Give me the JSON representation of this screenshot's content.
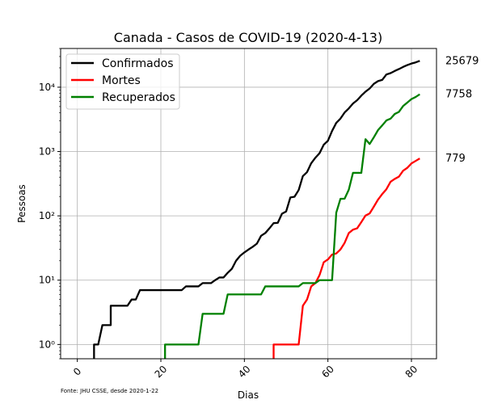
{
  "chart_data": {
    "type": "line",
    "title": "Canada - Casos de COVID-19 (2020-4-13)",
    "xlabel": "Dias",
    "ylabel": "Pessoas",
    "source_note": "Fonte: JHU CSSE, desde 2020-1-22",
    "x_scale": "linear",
    "y_scale": "log",
    "xlim": [
      -4,
      86
    ],
    "ylim": [
      0.6,
      40000
    ],
    "x_ticks": [
      0,
      20,
      40,
      60,
      80
    ],
    "x_tick_labels": [
      "0",
      "20",
      "40",
      "60",
      "80"
    ],
    "y_ticks": [
      1,
      10,
      100,
      1000,
      10000
    ],
    "y_tick_labels": [
      "10⁰",
      "10¹",
      "10²",
      "10³",
      "10⁴"
    ],
    "grid": true,
    "legend_position": "upper-left",
    "series": [
      {
        "name": "Confirmados",
        "color": "#000000",
        "end_label": "25679",
        "points": [
          [
            4,
            0.6
          ],
          [
            4,
            1
          ],
          [
            5,
            1
          ],
          [
            5,
            1
          ],
          [
            6,
            2
          ],
          [
            8,
            2
          ],
          [
            8,
            4
          ],
          [
            12,
            4
          ],
          [
            13,
            5
          ],
          [
            14,
            5
          ],
          [
            15,
            7
          ],
          [
            20,
            7
          ],
          [
            25,
            7
          ],
          [
            26,
            8
          ],
          [
            29,
            8
          ],
          [
            30,
            9
          ],
          [
            32,
            9
          ],
          [
            33,
            10
          ],
          [
            34,
            11
          ],
          [
            35,
            11
          ],
          [
            36,
            13
          ],
          [
            37,
            15
          ],
          [
            38,
            20
          ],
          [
            39,
            24
          ],
          [
            40,
            27
          ],
          [
            41,
            30
          ],
          [
            42,
            33
          ],
          [
            43,
            37
          ],
          [
            44,
            49
          ],
          [
            45,
            54
          ],
          [
            46,
            64
          ],
          [
            47,
            77
          ],
          [
            48,
            78
          ],
          [
            49,
            108
          ],
          [
            50,
            117
          ],
          [
            51,
            193
          ],
          [
            52,
            198
          ],
          [
            53,
            252
          ],
          [
            54,
            415
          ],
          [
            55,
            478
          ],
          [
            56,
            657
          ],
          [
            57,
            800
          ],
          [
            58,
            943
          ],
          [
            59,
            1277
          ],
          [
            60,
            1469
          ],
          [
            61,
            2088
          ],
          [
            62,
            2790
          ],
          [
            63,
            3251
          ],
          [
            64,
            4042
          ],
          [
            65,
            4682
          ],
          [
            66,
            5576
          ],
          [
            67,
            6280
          ],
          [
            68,
            7398
          ],
          [
            69,
            8527
          ],
          [
            70,
            9560
          ],
          [
            71,
            11284
          ],
          [
            72,
            12437
          ],
          [
            73,
            12978
          ],
          [
            74,
            15756
          ],
          [
            75,
            16563
          ],
          [
            76,
            17872
          ],
          [
            77,
            19141
          ],
          [
            78,
            20654
          ],
          [
            79,
            22059
          ],
          [
            80,
            23316
          ],
          [
            81,
            24298
          ],
          [
            82,
            25679
          ]
        ]
      },
      {
        "name": "Mortes",
        "color": "#ff0000",
        "end_label": "779",
        "points": [
          [
            47,
            0.6
          ],
          [
            47,
            1
          ],
          [
            53,
            1
          ],
          [
            54,
            4
          ],
          [
            55,
            5
          ],
          [
            56,
            8
          ],
          [
            57,
            9
          ],
          [
            58,
            12
          ],
          [
            59,
            19
          ],
          [
            60,
            21
          ],
          [
            61,
            25
          ],
          [
            62,
            26
          ],
          [
            63,
            30
          ],
          [
            64,
            38
          ],
          [
            65,
            54
          ],
          [
            66,
            61
          ],
          [
            67,
            64
          ],
          [
            68,
            80
          ],
          [
            69,
            101
          ],
          [
            70,
            109
          ],
          [
            71,
            139
          ],
          [
            72,
            179
          ],
          [
            73,
            218
          ],
          [
            74,
            259
          ],
          [
            75,
            339
          ],
          [
            76,
            375
          ],
          [
            77,
            407
          ],
          [
            78,
            503
          ],
          [
            79,
            557
          ],
          [
            80,
            653
          ],
          [
            81,
            714
          ],
          [
            82,
            779
          ]
        ]
      },
      {
        "name": "Recuperados",
        "color": "#008000",
        "end_label": "7758",
        "points": [
          [
            21,
            0.6
          ],
          [
            21,
            1
          ],
          [
            29,
            1
          ],
          [
            30,
            3
          ],
          [
            35,
            3
          ],
          [
            36,
            6
          ],
          [
            44,
            6
          ],
          [
            45,
            8
          ],
          [
            53,
            8
          ],
          [
            54,
            9
          ],
          [
            57,
            9
          ],
          [
            58,
            10
          ],
          [
            61,
            10
          ],
          [
            62,
            112
          ],
          [
            63,
            184
          ],
          [
            64,
            185
          ],
          [
            65,
            255
          ],
          [
            66,
            466
          ],
          [
            68,
            466
          ],
          [
            69,
            1555
          ],
          [
            70,
            1310
          ],
          [
            71,
            1665
          ],
          [
            72,
            2155
          ],
          [
            73,
            2548
          ],
          [
            74,
            3039
          ],
          [
            75,
            3244
          ],
          [
            76,
            3834
          ],
          [
            77,
            4132
          ],
          [
            78,
            5086
          ],
          [
            79,
            5765
          ],
          [
            80,
            6530
          ],
          [
            81,
            7045
          ],
          [
            82,
            7758
          ]
        ]
      }
    ]
  }
}
